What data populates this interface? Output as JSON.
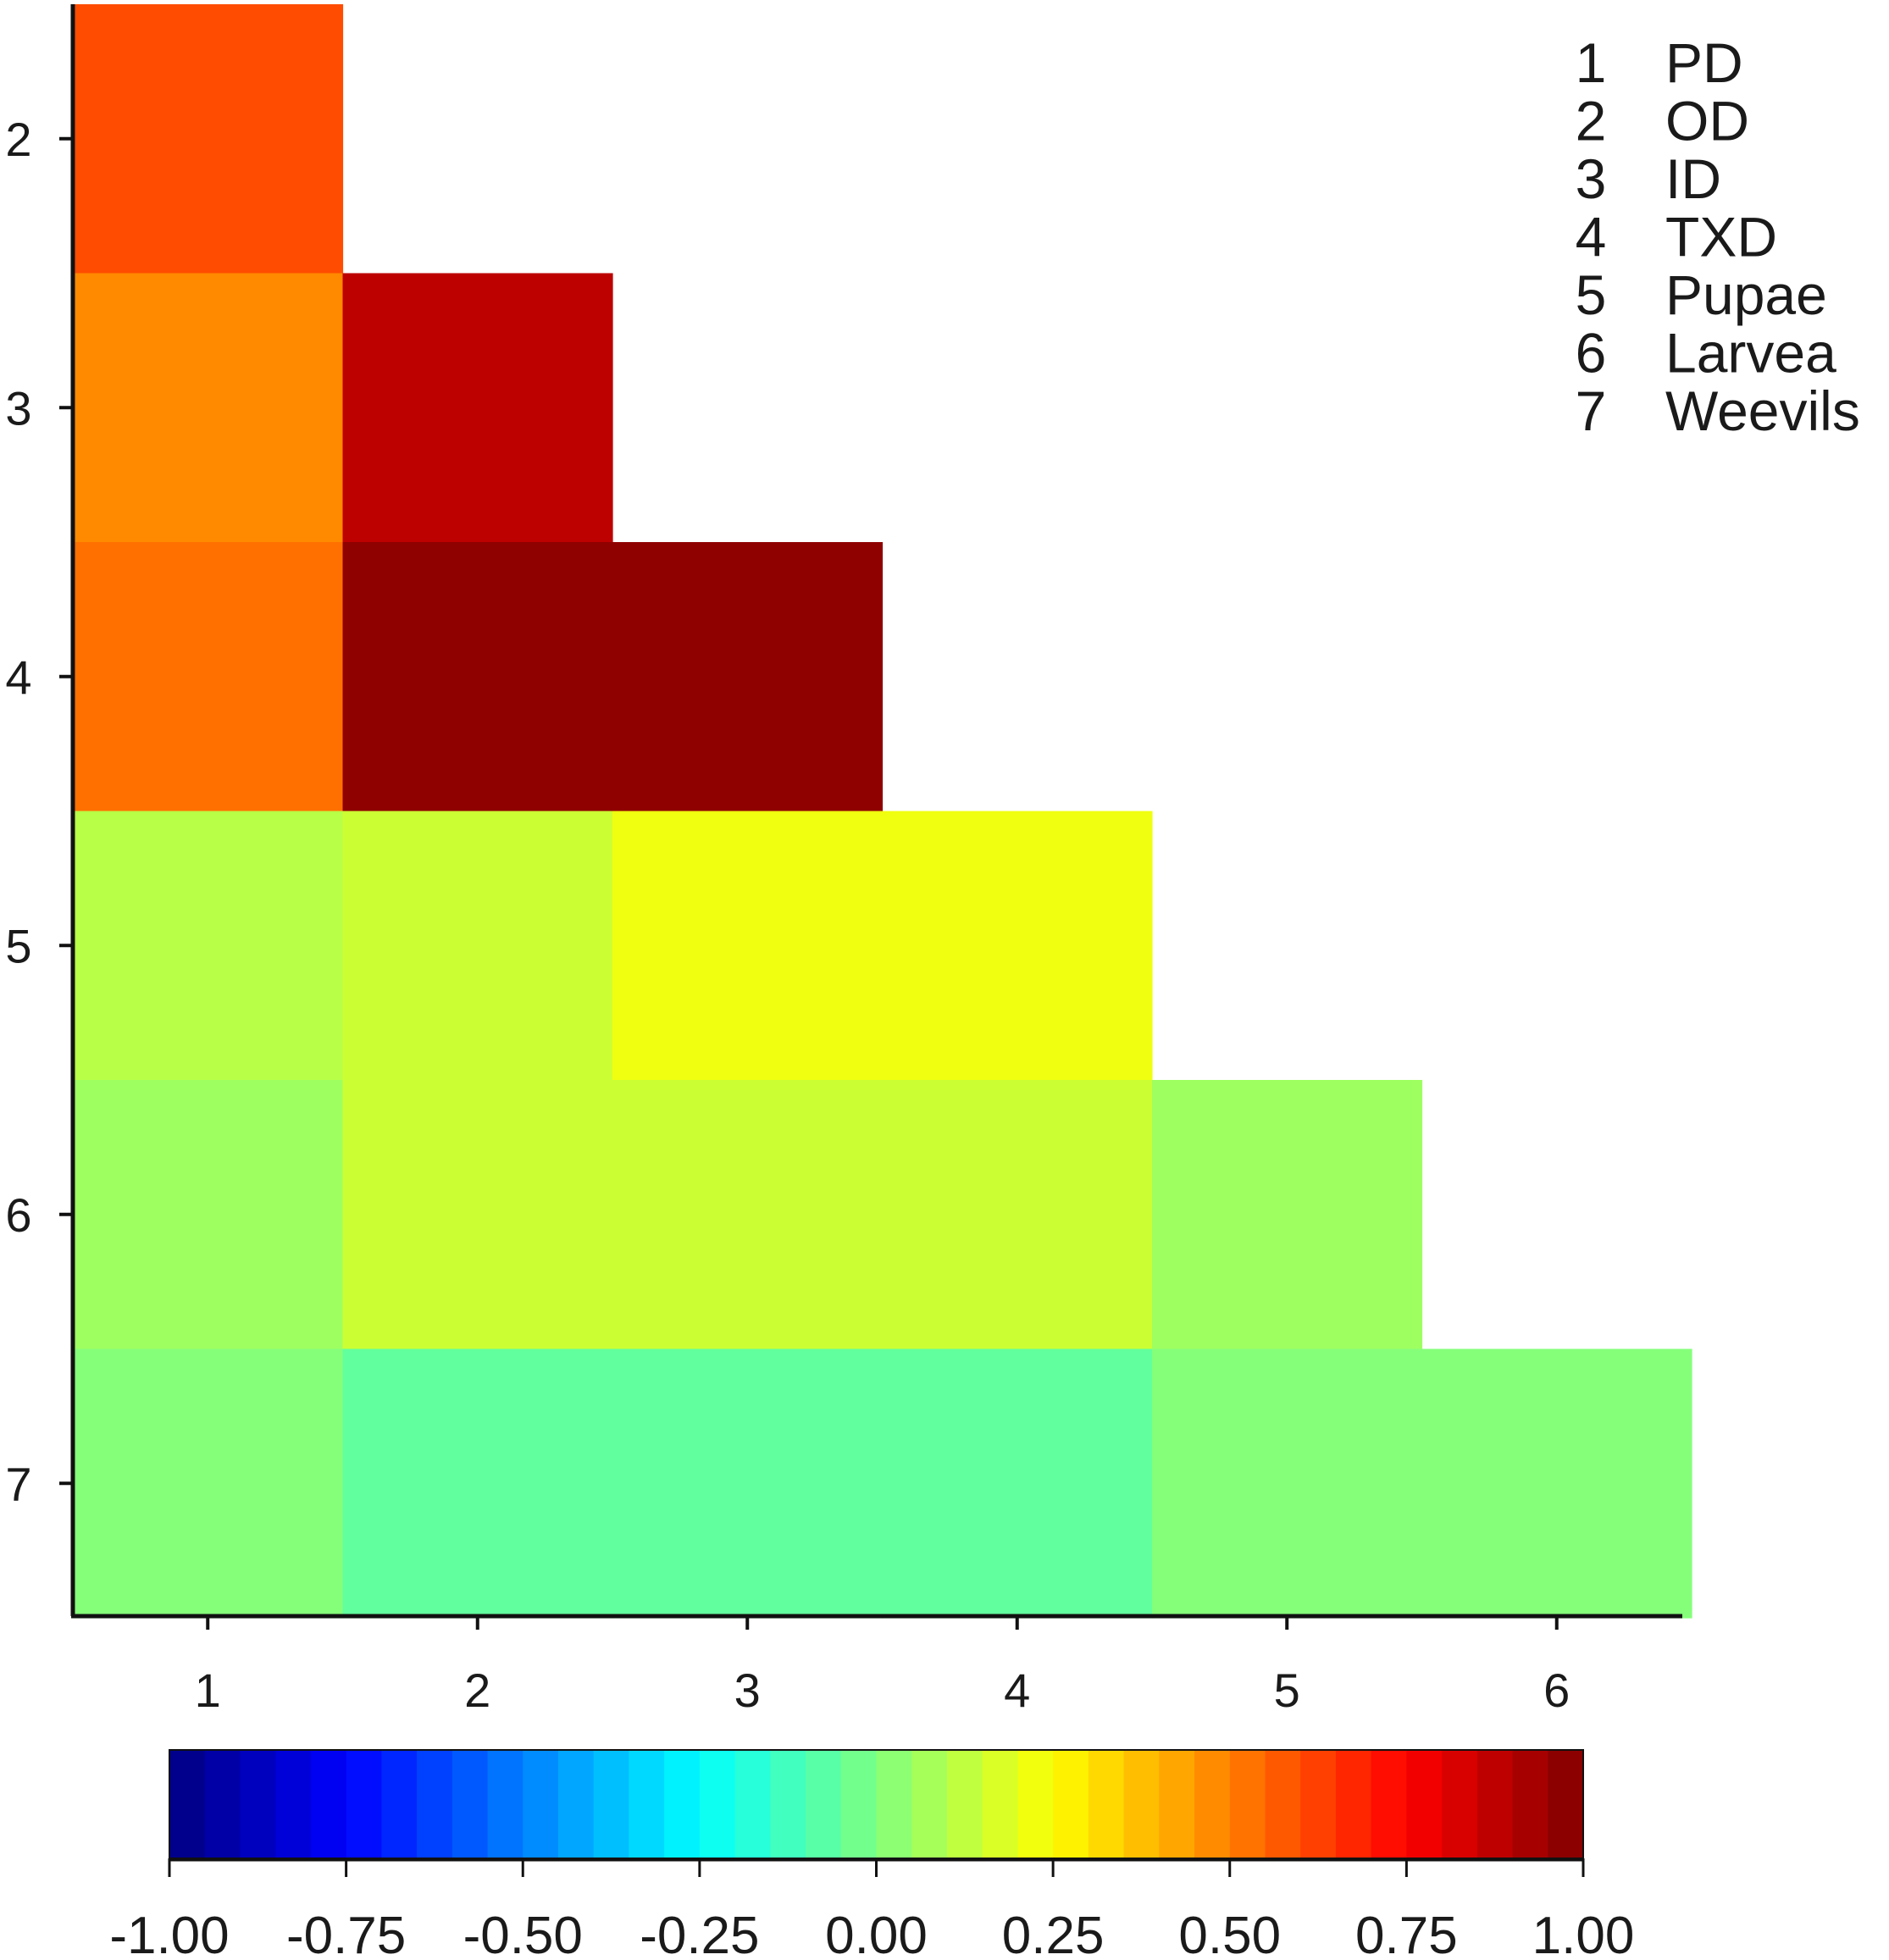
{
  "chart_data": {
    "type": "heatmap",
    "title": "",
    "xlabel": "",
    "ylabel": "",
    "x_categories": [
      "1",
      "2",
      "3",
      "4",
      "5",
      "6"
    ],
    "y_categories": [
      "2",
      "3",
      "4",
      "5",
      "6",
      "7"
    ],
    "cells": [
      {
        "x": "1",
        "y": "2",
        "value": 0.6
      },
      {
        "x": "1",
        "y": "3",
        "value": 0.48
      },
      {
        "x": "1",
        "y": "4",
        "value": 0.53
      },
      {
        "x": "2",
        "y": "3",
        "value": 0.88
      },
      {
        "x": "2",
        "y": "4",
        "value": 0.97
      },
      {
        "x": "3",
        "y": "4",
        "value": 0.97
      },
      {
        "x": "1",
        "y": "5",
        "value": 0.11
      },
      {
        "x": "2",
        "y": "5",
        "value": 0.15
      },
      {
        "x": "3",
        "y": "5",
        "value": 0.22
      },
      {
        "x": "4",
        "y": "5",
        "value": 0.22
      },
      {
        "x": "1",
        "y": "6",
        "value": 0.06
      },
      {
        "x": "2",
        "y": "6",
        "value": 0.15
      },
      {
        "x": "3",
        "y": "6",
        "value": 0.15
      },
      {
        "x": "4",
        "y": "6",
        "value": 0.15
      },
      {
        "x": "5",
        "y": "6",
        "value": 0.06
      },
      {
        "x": "1",
        "y": "7",
        "value": 0.01
      },
      {
        "x": "2",
        "y": "7",
        "value": -0.06
      },
      {
        "x": "3",
        "y": "7",
        "value": -0.06
      },
      {
        "x": "4",
        "y": "7",
        "value": -0.06
      },
      {
        "x": "5",
        "y": "7",
        "value": 0.01
      },
      {
        "x": "6",
        "y": "7",
        "value": 0.01
      }
    ],
    "colorbar": {
      "range": [
        -1.0,
        1.0
      ],
      "tick_labels": [
        "-1.00",
        "-0.75",
        "-0.50",
        "-0.25",
        "0.00",
        "0.25",
        "0.50",
        "0.75",
        "1.00"
      ],
      "colormap": "jet"
    },
    "legend": {
      "placement": "top-right",
      "entries": [
        {
          "number": "1",
          "name": "PD"
        },
        {
          "number": "2",
          "name": "OD"
        },
        {
          "number": "3",
          "name": "ID"
        },
        {
          "number": "4",
          "name": "TXD"
        },
        {
          "number": "5",
          "name": "Pupae"
        },
        {
          "number": "6",
          "name": "Larvea"
        },
        {
          "number": "7",
          "name": "Weevils"
        }
      ]
    },
    "grid": false
  }
}
